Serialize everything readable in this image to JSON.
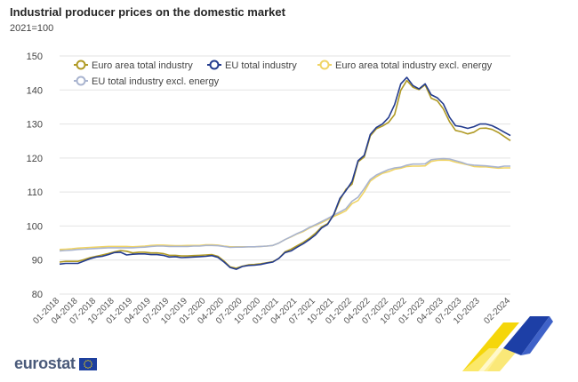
{
  "title": "Industrial producer prices on the domestic market",
  "subtitle": "2021=100",
  "logo_text": "eurostat",
  "chart_data": {
    "type": "line",
    "title": "Industrial producer prices on the domestic market",
    "ylabel": "2021=100",
    "xlabel": "",
    "ylim": [
      80,
      150
    ],
    "yticks": [
      80,
      90,
      100,
      110,
      120,
      130,
      140,
      150
    ],
    "grid": true,
    "legend": "top",
    "x_tick_labels": [
      "01-2018",
      "04-2018",
      "07-2018",
      "10-2018",
      "01-2019",
      "04-2019",
      "07-2019",
      "10-2019",
      "01-2020",
      "04-2020",
      "07-2020",
      "10-2020",
      "01-2021",
      "04-2021",
      "07-2021",
      "10-2021",
      "01-2022",
      "04-2022",
      "07-2022",
      "10-2022",
      "01-2023",
      "04-2023",
      "07-2023",
      "10-2023",
      "02-2024"
    ],
    "x_start": "01-2018",
    "x_end": "02-2024",
    "series": [
      {
        "name": "Euro area total industry",
        "color": "#b09a25",
        "values": [
          89.4,
          89.6,
          89.6,
          89.6,
          90.1,
          90.7,
          91.1,
          91.5,
          91.9,
          92.4,
          92.8,
          92.6,
          92.1,
          92.3,
          92.3,
          92.1,
          92.1,
          91.9,
          91.4,
          91.4,
          91.2,
          91.2,
          91.3,
          91.4,
          91.5,
          91.6,
          91.1,
          89.7,
          88.0,
          87.6,
          88.2,
          88.6,
          88.7,
          88.9,
          89.2,
          89.5,
          90.5,
          92.4,
          93.2,
          94.2,
          95.2,
          96.4,
          97.9,
          99.7,
          100.7,
          103.2,
          107.6,
          110.8,
          112.3,
          118.9,
          120.3,
          126.5,
          128.6,
          129.4,
          130.5,
          132.8,
          139.9,
          142.8,
          140.8,
          140.1,
          141.5,
          137.6,
          136.8,
          134.4,
          130.7,
          128.1,
          127.7,
          127.1,
          127.6,
          128.7,
          128.8,
          128.4,
          127.5,
          126.3,
          125.1
        ]
      },
      {
        "name": "EU total industry",
        "color": "#243c8e",
        "values": [
          88.8,
          89.0,
          89.0,
          89.0,
          89.7,
          90.4,
          90.9,
          91.1,
          91.6,
          92.2,
          92.3,
          91.5,
          91.7,
          91.8,
          91.8,
          91.6,
          91.6,
          91.4,
          90.9,
          91.0,
          90.7,
          90.8,
          90.9,
          91.0,
          91.1,
          91.3,
          90.8,
          89.4,
          87.8,
          87.3,
          88.1,
          88.4,
          88.5,
          88.7,
          89.1,
          89.4,
          90.5,
          92.2,
          92.7,
          93.8,
          94.8,
          96.0,
          97.4,
          99.4,
          100.5,
          103.4,
          108.1,
          110.4,
          113.1,
          119.2,
          120.8,
          126.9,
          129.0,
          130.0,
          131.9,
          135.7,
          141.8,
          143.7,
          141.3,
          140.3,
          141.8,
          138.6,
          137.7,
          135.9,
          132.0,
          129.5,
          129.2,
          128.7,
          129.2,
          130.0,
          130.0,
          129.5,
          128.6,
          127.6,
          126.6
        ]
      },
      {
        "name": "Euro area total industry excl. energy",
        "color": "#f0d464",
        "values": [
          93.1,
          93.2,
          93.3,
          93.5,
          93.6,
          93.7,
          93.8,
          93.9,
          94.0,
          94.0,
          94.0,
          94.0,
          93.9,
          94.0,
          94.1,
          94.3,
          94.4,
          94.4,
          94.3,
          94.2,
          94.2,
          94.3,
          94.3,
          94.3,
          94.5,
          94.5,
          94.4,
          94.1,
          93.9,
          93.9,
          93.9,
          93.9,
          93.9,
          94.0,
          94.1,
          94.3,
          95.0,
          96.0,
          96.8,
          97.7,
          98.4,
          99.4,
          100.2,
          101.0,
          101.9,
          102.8,
          103.6,
          104.5,
          106.6,
          107.5,
          110.1,
          113.2,
          114.5,
          115.5,
          116.0,
          116.7,
          117.0,
          117.5,
          117.6,
          117.6,
          117.7,
          119.0,
          119.3,
          119.4,
          119.3,
          118.8,
          118.4,
          118.0,
          117.5,
          117.4,
          117.4,
          117.2,
          117.0,
          117.1,
          117.1
        ]
      },
      {
        "name": "EU total industry excl. energy",
        "color": "#a9b4cf",
        "values": [
          92.7,
          92.8,
          92.9,
          93.1,
          93.2,
          93.3,
          93.4,
          93.5,
          93.6,
          93.6,
          93.6,
          93.6,
          93.6,
          93.7,
          93.8,
          94.0,
          94.1,
          94.1,
          94.0,
          94.0,
          94.0,
          94.0,
          94.1,
          94.1,
          94.3,
          94.3,
          94.2,
          94.0,
          93.7,
          93.8,
          93.8,
          93.9,
          93.9,
          94.0,
          94.1,
          94.3,
          95.0,
          96.0,
          96.9,
          97.8,
          98.6,
          99.6,
          100.4,
          101.3,
          102.2,
          103.2,
          104.1,
          105.1,
          107.3,
          108.5,
          111.0,
          113.7,
          115.0,
          115.8,
          116.6,
          117.1,
          117.3,
          117.9,
          118.2,
          118.2,
          118.3,
          119.5,
          119.7,
          119.8,
          119.7,
          119.2,
          118.7,
          118.1,
          117.9,
          117.8,
          117.7,
          117.5,
          117.3,
          117.6,
          117.6
        ]
      }
    ]
  }
}
